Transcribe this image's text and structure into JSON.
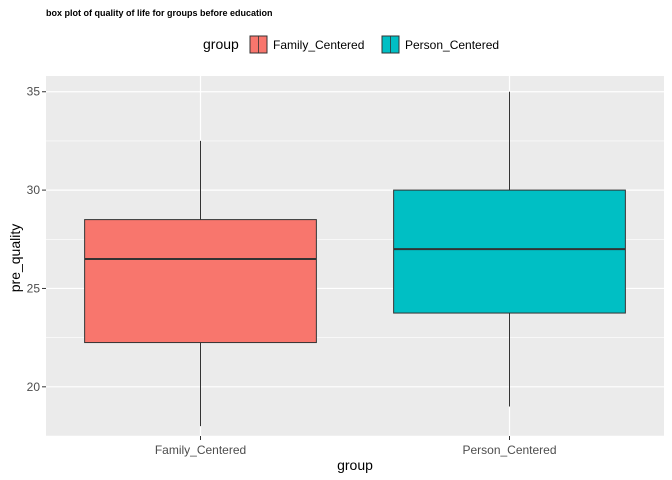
{
  "chart_data": {
    "type": "boxplot",
    "title": "box plot of quality of life for groups before education",
    "xlabel": "group",
    "ylabel": "pre_quality",
    "ylim": [
      17.5,
      35.8
    ],
    "yticks": [
      20,
      25,
      30,
      35
    ],
    "grid": true,
    "legend": {
      "title": "group",
      "position": "top",
      "entries": [
        {
          "label": "Family_Centered",
          "color": "#F8766D"
        },
        {
          "label": "Person_Centered",
          "color": "#00BFC4"
        }
      ]
    },
    "categories": [
      "Family_Centered",
      "Person_Centered"
    ],
    "boxes": [
      {
        "category": "Family_Centered",
        "min": 18,
        "q1": 22.25,
        "median": 26.5,
        "q3": 28.5,
        "max": 32.5,
        "color": "#F8766D"
      },
      {
        "category": "Person_Centered",
        "min": 19,
        "q1": 23.75,
        "median": 27,
        "q3": 30,
        "max": 35,
        "color": "#00BFC4"
      }
    ]
  },
  "colors": {
    "panel_bg": "#EBEBEB",
    "grid_major": "#FFFFFF",
    "outline": "#333333",
    "whisker": "#333333"
  }
}
